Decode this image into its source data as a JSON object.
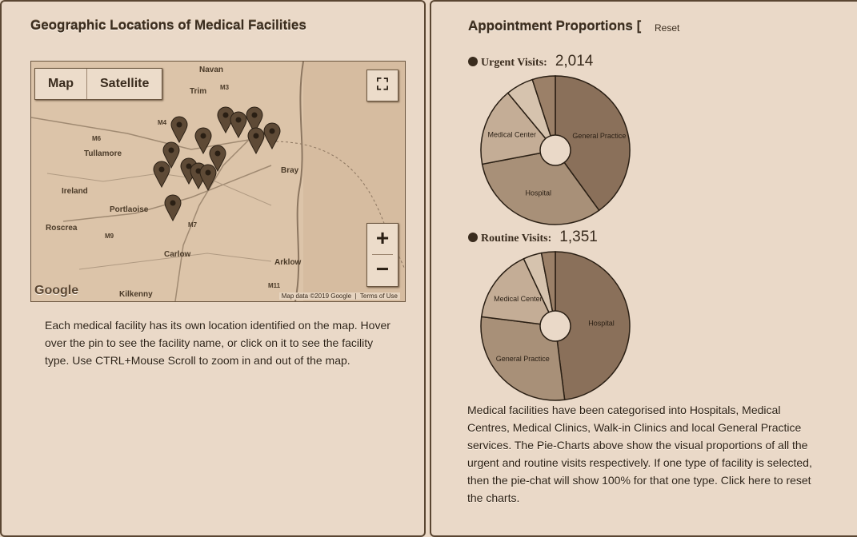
{
  "left_panel": {
    "title": "Geographic Locations of Medical Facilities",
    "map": {
      "type_buttons": [
        "Map",
        "Satellite"
      ],
      "fullscreen_icon": "fullscreen-icon",
      "zoom_in_label": "+",
      "zoom_out_label": "−",
      "logo": "Google",
      "attribution": "Map data ©2019 Google",
      "terms": "Terms of Use",
      "place_labels": [
        "Navan",
        "Trim",
        "Tullamore",
        "Portlaoise",
        "Roscrea",
        "Carlow",
        "Kilkenny",
        "Bray",
        "Arklow",
        "Ireland"
      ],
      "road_labels": [
        "M3",
        "M4",
        "M6",
        "M7",
        "M9",
        "M11"
      ]
    },
    "description": "Each medical facility has its own location identified on the map. Hover over the pin to see the facility name, or click on it to see the facility type. Use CTRL+Mouse Scroll to zoom in and out of the map."
  },
  "right_panel": {
    "title": "Appointment Proportions [",
    "reset_label": "Reset",
    "description": "Medical facilities have been categorised into Hospitals, Medical Centres, Medical Clinics, Walk-in Clinics and local General Practice services. The Pie-Charts above show the visual proportions of all the urgent and routine visits respectively. If one type of facility is selected, then the pie-chat will show 100% for that one type. Click here to reset the charts."
  },
  "chart_data": [
    {
      "type": "pie",
      "title": "Urgent Visits:",
      "total": "2,014",
      "slices": [
        {
          "label": "General Practice",
          "value": 40,
          "color": "#8a705a"
        },
        {
          "label": "Hospital",
          "value": 32,
          "color": "#a89078"
        },
        {
          "label": "Medical Center",
          "value": 17,
          "color": "#c4ad96"
        },
        {
          "label": "",
          "value": 6,
          "color": "#d6c3ae"
        },
        {
          "label": "",
          "value": 5,
          "color": "#9b8068"
        }
      ]
    },
    {
      "type": "pie",
      "title": "Routine Visits:",
      "total": "1,351",
      "slices": [
        {
          "label": "Hospital",
          "value": 48,
          "color": "#8a705a"
        },
        {
          "label": "General Practice",
          "value": 29,
          "color": "#a89078"
        },
        {
          "label": "Medical Center",
          "value": 16,
          "color": "#c4ad96"
        },
        {
          "label": "",
          "value": 4,
          "color": "#d6c3ae"
        },
        {
          "label": "",
          "value": 3,
          "color": "#9b8068"
        }
      ]
    }
  ]
}
